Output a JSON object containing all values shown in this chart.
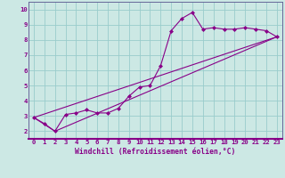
{
  "xlabel": "Windchill (Refroidissement éolien,°C)",
  "bg_color": "#cce8e4",
  "line_color": "#880088",
  "grid_color": "#99cccc",
  "axis_color": "#666699",
  "series1_x": [
    0,
    1,
    2,
    3,
    4,
    5,
    6,
    7,
    8,
    9,
    10,
    11,
    12,
    13,
    14,
    15,
    16,
    17,
    18,
    19,
    20,
    21,
    22,
    23
  ],
  "series1_y": [
    2.9,
    2.5,
    2.0,
    3.1,
    3.2,
    3.4,
    3.2,
    3.2,
    3.5,
    4.3,
    4.9,
    5.0,
    6.3,
    8.6,
    9.4,
    9.8,
    8.7,
    8.8,
    8.7,
    8.7,
    8.8,
    8.7,
    8.6,
    8.2
  ],
  "series2_x": [
    0,
    23
  ],
  "series2_y": [
    2.9,
    8.2
  ],
  "series3_x": [
    0,
    2,
    23
  ],
  "series3_y": [
    2.9,
    2.0,
    8.2
  ],
  "xlim": [
    -0.5,
    23.5
  ],
  "ylim": [
    1.5,
    10.5
  ],
  "xticks": [
    0,
    1,
    2,
    3,
    4,
    5,
    6,
    7,
    8,
    9,
    10,
    11,
    12,
    13,
    14,
    15,
    16,
    17,
    18,
    19,
    20,
    21,
    22,
    23
  ],
  "yticks": [
    2,
    3,
    4,
    5,
    6,
    7,
    8,
    9,
    10
  ],
  "tick_fontsize": 5.2,
  "xlabel_fontsize": 5.8
}
